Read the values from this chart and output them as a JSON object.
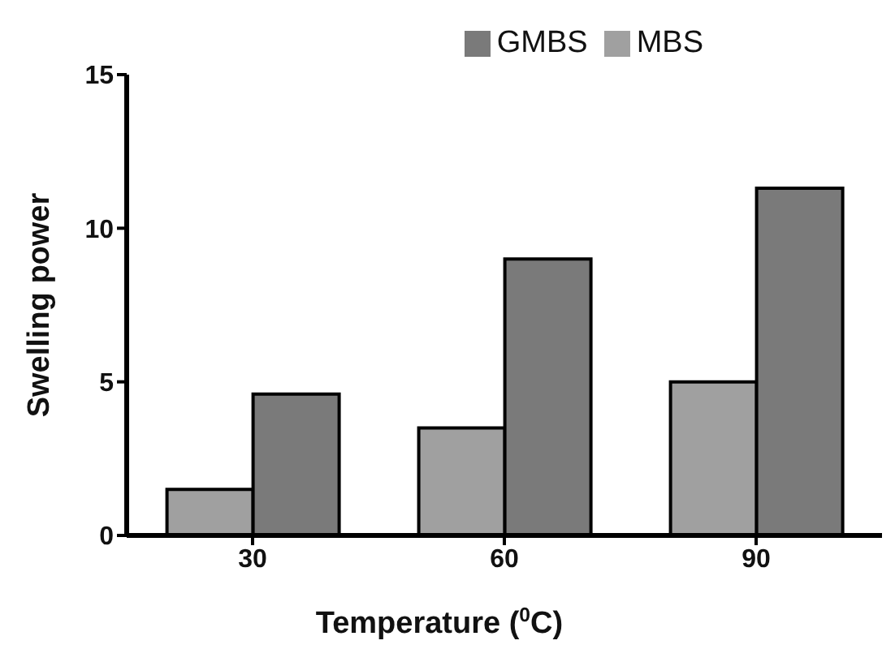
{
  "chart_data": {
    "type": "bar",
    "xlabel": "Temperature ($^{0}$C)",
    "ylabel": "Swelling power",
    "categories": [
      "30",
      "60",
      "90"
    ],
    "series": [
      {
        "name": "MBS",
        "color": "#a0a0a0",
        "values": [
          1.5,
          3.5,
          5.0
        ]
      },
      {
        "name": "GMBS",
        "color": "#7a7a7a",
        "values": [
          4.6,
          9.0,
          11.3
        ]
      }
    ],
    "ylim": [
      0,
      15
    ],
    "yticks": [
      0,
      5,
      10,
      15
    ],
    "grid": false,
    "legend": "top right"
  }
}
